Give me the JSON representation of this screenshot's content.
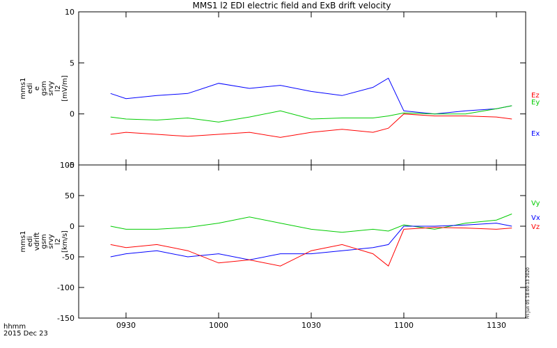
{
  "chart_data": {
    "type": "line",
    "title": "MMS1 l2 EDI electric field and ExB drift velocity",
    "x_ticks": [
      "0930",
      "1000",
      "1030",
      "1100",
      "1130"
    ],
    "x_corner_label": "hhmm",
    "date_label": "2015 Dec 23",
    "side_stamp": "Fri Jun 05 18:00:13 2020",
    "panels": [
      {
        "ylabel_lines": [
          "mms1",
          "edi",
          "e",
          "gsm",
          "srvy",
          "l2",
          "[mV/m]"
        ],
        "ylim": [
          -5,
          10
        ],
        "y_ticks": [
          "-5",
          "0",
          "5",
          "10"
        ],
        "series": [
          {
            "name": "Ex",
            "color": "#0000ff",
            "points": [
              [
                "0925",
                2.0
              ],
              [
                "0930",
                1.5
              ],
              [
                "0940",
                1.8
              ],
              [
                "0950",
                2.0
              ],
              [
                "1000",
                3.0
              ],
              [
                "1010",
                2.5
              ],
              [
                "1020",
                2.8
              ],
              [
                "1030",
                2.2
              ],
              [
                "1040",
                1.8
              ],
              [
                "1050",
                2.6
              ],
              [
                "1055",
                3.5
              ],
              [
                "1100",
                0.3
              ],
              [
                "1110",
                0.0
              ],
              [
                "1120",
                0.3
              ],
              [
                "1130",
                0.5
              ],
              [
                "1135",
                0.8
              ]
            ]
          },
          {
            "name": "Ey",
            "color": "#00cc00",
            "points": [
              [
                "0925",
                -0.3
              ],
              [
                "0930",
                -0.5
              ],
              [
                "0940",
                -0.6
              ],
              [
                "0950",
                -0.4
              ],
              [
                "1000",
                -0.8
              ],
              [
                "1010",
                -0.3
              ],
              [
                "1020",
                0.3
              ],
              [
                "1030",
                -0.5
              ],
              [
                "1040",
                -0.4
              ],
              [
                "1050",
                -0.4
              ],
              [
                "1055",
                -0.2
              ],
              [
                "1100",
                0.1
              ],
              [
                "1110",
                0.0
              ],
              [
                "1120",
                0.0
              ],
              [
                "1130",
                0.5
              ],
              [
                "1135",
                0.8
              ]
            ]
          },
          {
            "name": "Ez",
            "color": "#ff0000",
            "points": [
              [
                "0925",
                -2.0
              ],
              [
                "0930",
                -1.8
              ],
              [
                "0940",
                -2.0
              ],
              [
                "0950",
                -2.2
              ],
              [
                "1000",
                -2.0
              ],
              [
                "1010",
                -1.8
              ],
              [
                "1020",
                -2.3
              ],
              [
                "1030",
                -1.8
              ],
              [
                "1040",
                -1.5
              ],
              [
                "1050",
                -1.8
              ],
              [
                "1055",
                -1.4
              ],
              [
                "1100",
                0.0
              ],
              [
                "1110",
                -0.2
              ],
              [
                "1120",
                -0.2
              ],
              [
                "1130",
                -0.3
              ],
              [
                "1135",
                -0.5
              ]
            ]
          }
        ]
      },
      {
        "ylabel_lines": [
          "mms1",
          "edi",
          "vdrift",
          "gsm",
          "srvy",
          "l2",
          "[km/s]"
        ],
        "ylim": [
          -150,
          100
        ],
        "y_ticks": [
          "-150",
          "-100",
          "-50",
          "0",
          "50",
          "100"
        ],
        "series": [
          {
            "name": "Vy",
            "color": "#00cc00",
            "points": [
              [
                "0925",
                0
              ],
              [
                "0930",
                -5
              ],
              [
                "0940",
                -5
              ],
              [
                "0950",
                -2
              ],
              [
                "1000",
                5
              ],
              [
                "1010",
                15
              ],
              [
                "1020",
                5
              ],
              [
                "1030",
                -5
              ],
              [
                "1040",
                -10
              ],
              [
                "1050",
                -5
              ],
              [
                "1055",
                -8
              ],
              [
                "1100",
                2
              ],
              [
                "1110",
                -5
              ],
              [
                "1120",
                5
              ],
              [
                "1130",
                10
              ],
              [
                "1135",
                20
              ]
            ]
          },
          {
            "name": "Vx",
            "color": "#0000ff",
            "points": [
              [
                "0925",
                -50
              ],
              [
                "0930",
                -45
              ],
              [
                "0940",
                -40
              ],
              [
                "0950",
                -50
              ],
              [
                "1000",
                -45
              ],
              [
                "1010",
                -55
              ],
              [
                "1020",
                -45
              ],
              [
                "1030",
                -45
              ],
              [
                "1040",
                -40
              ],
              [
                "1050",
                -35
              ],
              [
                "1055",
                -30
              ],
              [
                "1100",
                0
              ],
              [
                "1110",
                0
              ],
              [
                "1120",
                2
              ],
              [
                "1130",
                5
              ],
              [
                "1135",
                0
              ]
            ]
          },
          {
            "name": "Vz",
            "color": "#ff0000",
            "points": [
              [
                "0925",
                -30
              ],
              [
                "0930",
                -35
              ],
              [
                "0940",
                -30
              ],
              [
                "0950",
                -40
              ],
              [
                "1000",
                -60
              ],
              [
                "1010",
                -55
              ],
              [
                "1020",
                -65
              ],
              [
                "1030",
                -40
              ],
              [
                "1040",
                -30
              ],
              [
                "1050",
                -45
              ],
              [
                "1055",
                -65
              ],
              [
                "1100",
                -5
              ],
              [
                "1110",
                -2
              ],
              [
                "1120",
                -3
              ],
              [
                "1130",
                -5
              ],
              [
                "1135",
                -3
              ]
            ]
          }
        ]
      }
    ]
  }
}
